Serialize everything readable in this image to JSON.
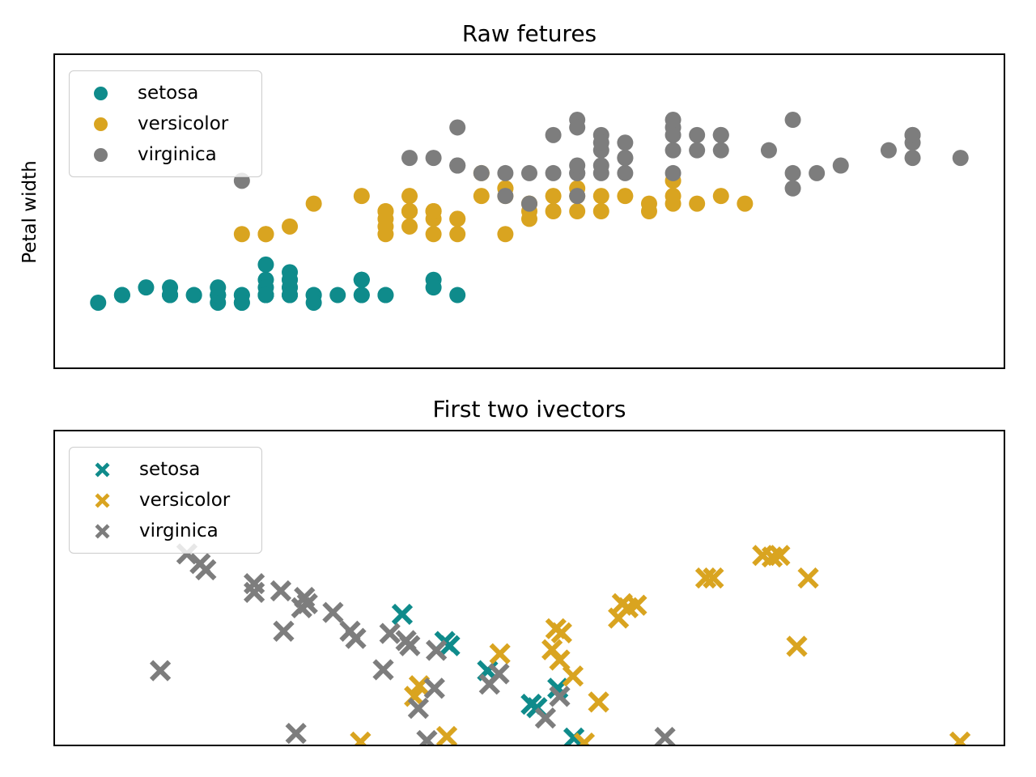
{
  "figure": {
    "background": "#ffffff",
    "axes_border_color": "#000000",
    "text_color": "#000000"
  },
  "chart_data": [
    {
      "type": "scatter",
      "title": "Raw fetures",
      "ylabel": "Petal width",
      "xlabel": "",
      "marker": "circle",
      "marker_radius_px": 10,
      "grid": false,
      "legend_position": "upper left",
      "axis_ticks_visible": false,
      "xlim": [
        4.12,
        8.08
      ],
      "ylim": [
        -0.75,
        3.35
      ],
      "series": [
        {
          "name": "setosa",
          "color": "#0f8b8b",
          "points": [
            [
              5.1,
              0.2
            ],
            [
              4.9,
              0.2
            ],
            [
              4.7,
              0.2
            ],
            [
              4.6,
              0.2
            ],
            [
              5.0,
              0.2
            ],
            [
              5.4,
              0.4
            ],
            [
              4.6,
              0.3
            ],
            [
              5.0,
              0.2
            ],
            [
              4.4,
              0.2
            ],
            [
              4.9,
              0.1
            ],
            [
              5.4,
              0.2
            ],
            [
              4.8,
              0.2
            ],
            [
              4.8,
              0.1
            ],
            [
              4.3,
              0.1
            ],
            [
              5.8,
              0.2
            ],
            [
              5.7,
              0.4
            ],
            [
              5.4,
              0.4
            ],
            [
              5.1,
              0.3
            ],
            [
              5.7,
              0.3
            ],
            [
              5.1,
              0.3
            ],
            [
              5.4,
              0.2
            ],
            [
              5.1,
              0.4
            ],
            [
              4.6,
              0.2
            ],
            [
              5.1,
              0.5
            ],
            [
              4.8,
              0.2
            ],
            [
              5.0,
              0.2
            ],
            [
              5.0,
              0.4
            ],
            [
              5.2,
              0.2
            ],
            [
              5.2,
              0.2
            ],
            [
              4.7,
              0.2
            ],
            [
              4.8,
              0.2
            ],
            [
              5.4,
              0.4
            ],
            [
              5.2,
              0.1
            ],
            [
              5.5,
              0.2
            ],
            [
              4.9,
              0.2
            ],
            [
              5.0,
              0.2
            ],
            [
              5.5,
              0.2
            ],
            [
              4.9,
              0.1
            ],
            [
              4.4,
              0.2
            ],
            [
              5.1,
              0.2
            ],
            [
              5.0,
              0.3
            ],
            [
              4.5,
              0.3
            ],
            [
              4.4,
              0.2
            ],
            [
              5.0,
              0.6
            ],
            [
              5.1,
              0.4
            ],
            [
              4.8,
              0.3
            ],
            [
              5.1,
              0.2
            ],
            [
              4.6,
              0.2
            ],
            [
              5.3,
              0.2
            ],
            [
              5.0,
              0.2
            ]
          ]
        },
        {
          "name": "versicolor",
          "color": "#d9a420",
          "points": [
            [
              7.0,
              1.4
            ],
            [
              6.4,
              1.5
            ],
            [
              6.9,
              1.5
            ],
            [
              5.5,
              1.3
            ],
            [
              6.5,
              1.5
            ],
            [
              5.7,
              1.3
            ],
            [
              6.3,
              1.6
            ],
            [
              4.9,
              1.0
            ],
            [
              6.6,
              1.3
            ],
            [
              5.2,
              1.4
            ],
            [
              5.0,
              1.0
            ],
            [
              5.9,
              1.5
            ],
            [
              6.0,
              1.0
            ],
            [
              6.1,
              1.4
            ],
            [
              5.6,
              1.3
            ],
            [
              6.7,
              1.4
            ],
            [
              5.6,
              1.5
            ],
            [
              5.8,
              1.0
            ],
            [
              6.2,
              1.5
            ],
            [
              5.6,
              1.1
            ],
            [
              5.9,
              1.8
            ],
            [
              6.1,
              1.3
            ],
            [
              6.3,
              1.5
            ],
            [
              6.1,
              1.2
            ],
            [
              6.4,
              1.3
            ],
            [
              6.6,
              1.4
            ],
            [
              6.8,
              1.4
            ],
            [
              6.7,
              1.7
            ],
            [
              6.0,
              1.5
            ],
            [
              5.7,
              1.0
            ],
            [
              5.5,
              1.1
            ],
            [
              5.5,
              1.0
            ],
            [
              5.8,
              1.2
            ],
            [
              6.0,
              1.6
            ],
            [
              5.4,
              1.5
            ],
            [
              6.0,
              1.6
            ],
            [
              6.7,
              1.5
            ],
            [
              6.3,
              1.3
            ],
            [
              5.6,
              1.3
            ],
            [
              5.5,
              1.3
            ],
            [
              5.5,
              1.2
            ],
            [
              6.1,
              1.4
            ],
            [
              5.8,
              1.2
            ],
            [
              5.0,
              1.0
            ],
            [
              5.6,
              1.3
            ],
            [
              5.7,
              1.2
            ],
            [
              5.7,
              1.3
            ],
            [
              6.2,
              1.3
            ],
            [
              5.1,
              1.1
            ],
            [
              5.7,
              1.3
            ]
          ]
        },
        {
          "name": "virginica",
          "color": "#7d7d7d",
          "points": [
            [
              6.3,
              2.5
            ],
            [
              5.8,
              1.9
            ],
            [
              7.1,
              2.1
            ],
            [
              6.3,
              1.8
            ],
            [
              6.5,
              2.2
            ],
            [
              7.6,
              2.1
            ],
            [
              4.9,
              1.7
            ],
            [
              7.3,
              1.8
            ],
            [
              6.7,
              1.8
            ],
            [
              7.2,
              2.5
            ],
            [
              6.5,
              2.0
            ],
            [
              6.4,
              1.9
            ],
            [
              6.8,
              2.1
            ],
            [
              5.7,
              2.0
            ],
            [
              5.8,
              2.4
            ],
            [
              6.4,
              2.3
            ],
            [
              6.5,
              1.8
            ],
            [
              7.7,
              2.2
            ],
            [
              7.7,
              2.3
            ],
            [
              6.0,
              1.5
            ],
            [
              6.9,
              2.3
            ],
            [
              5.6,
              2.0
            ],
            [
              7.7,
              2.0
            ],
            [
              6.3,
              1.8
            ],
            [
              6.7,
              2.1
            ],
            [
              7.2,
              1.8
            ],
            [
              6.2,
              1.8
            ],
            [
              6.1,
              1.8
            ],
            [
              6.4,
              2.1
            ],
            [
              7.2,
              1.6
            ],
            [
              7.4,
              1.9
            ],
            [
              7.9,
              2.0
            ],
            [
              6.4,
              2.2
            ],
            [
              6.3,
              1.5
            ],
            [
              6.1,
              1.4
            ],
            [
              7.7,
              2.3
            ],
            [
              6.3,
              2.4
            ],
            [
              6.4,
              1.8
            ],
            [
              6.0,
              1.8
            ],
            [
              6.9,
              2.1
            ],
            [
              6.7,
              2.4
            ],
            [
              6.9,
              2.3
            ],
            [
              5.8,
              1.9
            ],
            [
              6.8,
              2.3
            ],
            [
              6.7,
              2.5
            ],
            [
              6.7,
              2.3
            ],
            [
              6.3,
              1.9
            ],
            [
              6.5,
              2.0
            ],
            [
              6.2,
              2.3
            ],
            [
              5.9,
              1.8
            ]
          ]
        }
      ]
    },
    {
      "type": "scatter",
      "title": "First two ivectors",
      "ylabel": "",
      "xlabel": "",
      "marker": "x",
      "marker_half_px": 11,
      "marker_stroke_px": 6,
      "grid": false,
      "legend_position": "upper left",
      "axis_ticks_visible": false,
      "coords_note": "axes-fraction estimates (no tick labels shown on chart)",
      "xlim": [
        0,
        1
      ],
      "ylim": [
        0,
        1
      ],
      "series": [
        {
          "name": "setosa",
          "color": "#0f8b8b",
          "points": [
            [
              0.366,
              0.416
            ],
            [
              0.411,
              0.329
            ],
            [
              0.416,
              0.316
            ],
            [
              0.456,
              0.236
            ],
            [
              0.502,
              0.129
            ],
            [
              0.508,
              0.118
            ],
            [
              0.53,
              0.18
            ],
            [
              0.547,
              0.021
            ]
          ]
        },
        {
          "name": "versicolor",
          "color": "#d9a420",
          "points": [
            [
              0.528,
              0.37
            ],
            [
              0.534,
              0.357
            ],
            [
              0.524,
              0.303
            ],
            [
              0.532,
              0.27
            ],
            [
              0.546,
              0.219
            ],
            [
              0.469,
              0.29
            ],
            [
              0.384,
              0.188
            ],
            [
              0.379,
              0.154
            ],
            [
              0.573,
              0.136
            ],
            [
              0.598,
              0.45
            ],
            [
              0.604,
              0.437
            ],
            [
              0.613,
              0.445
            ],
            [
              0.594,
              0.404
            ],
            [
              0.686,
              0.532
            ],
            [
              0.694,
              0.532
            ],
            [
              0.746,
              0.604
            ],
            [
              0.756,
              0.599
            ],
            [
              0.764,
              0.604
            ],
            [
              0.794,
              0.532
            ],
            [
              0.782,
              0.314
            ],
            [
              0.413,
              0.026
            ],
            [
              0.322,
              0.008
            ],
            [
              0.558,
              0.005
            ],
            [
              0.954,
              0.008
            ]
          ]
        },
        {
          "name": "virginica",
          "color": "#7d7d7d",
          "points": [
            [
              0.139,
              0.609
            ],
            [
              0.153,
              0.578
            ],
            [
              0.159,
              0.558
            ],
            [
              0.21,
              0.514
            ],
            [
              0.21,
              0.486
            ],
            [
              0.238,
              0.491
            ],
            [
              0.263,
              0.47
            ],
            [
              0.266,
              0.45
            ],
            [
              0.26,
              0.437
            ],
            [
              0.293,
              0.422
            ],
            [
              0.241,
              0.362
            ],
            [
              0.311,
              0.362
            ],
            [
              0.317,
              0.339
            ],
            [
              0.353,
              0.355
            ],
            [
              0.37,
              0.332
            ],
            [
              0.374,
              0.316
            ],
            [
              0.402,
              0.301
            ],
            [
              0.111,
              0.236
            ],
            [
              0.346,
              0.239
            ],
            [
              0.4,
              0.18
            ],
            [
              0.383,
              0.116
            ],
            [
              0.468,
              0.226
            ],
            [
              0.458,
              0.193
            ],
            [
              0.517,
              0.085
            ],
            [
              0.532,
              0.154
            ],
            [
              0.254,
              0.036
            ],
            [
              0.392,
              0.013
            ],
            [
              0.643,
              0.023
            ]
          ]
        }
      ]
    }
  ]
}
